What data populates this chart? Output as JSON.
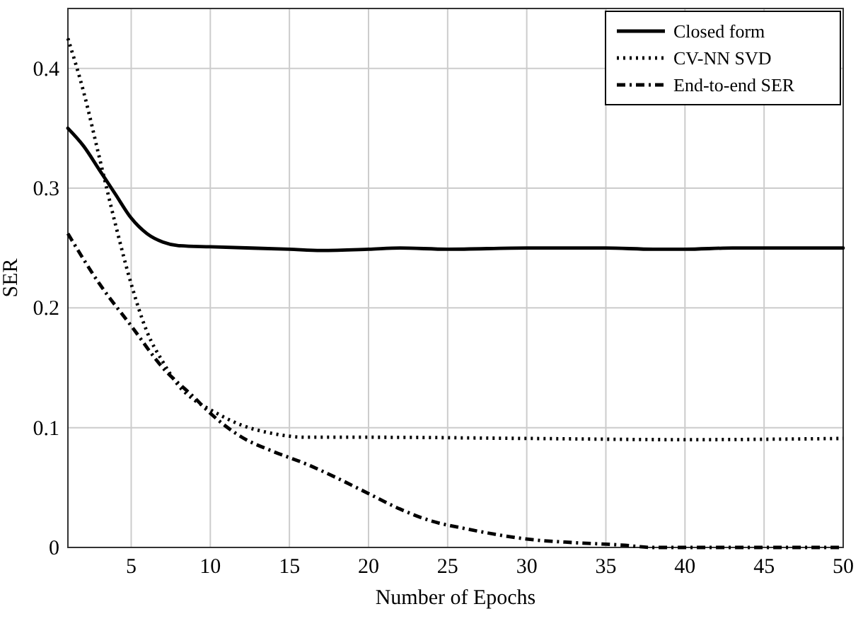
{
  "chart_data": {
    "type": "line",
    "xlabel": "Number of Epochs",
    "ylabel": "SER",
    "xlim": [
      1,
      50
    ],
    "xticks": [
      5,
      10,
      15,
      20,
      25,
      30,
      35,
      40,
      45,
      50
    ],
    "ylim": [
      0,
      0.45
    ],
    "yticks": [
      0,
      0.1,
      0.2,
      0.3,
      0.4
    ],
    "grid": true,
    "legend": "top right",
    "series": [
      {
        "name": "Closed form",
        "color": "#000000",
        "line_style": "solid",
        "x": [
          1,
          2,
          3,
          4,
          5,
          6,
          7,
          8,
          10,
          15,
          17,
          20,
          22,
          25,
          30,
          35,
          38,
          40,
          43,
          50
        ],
        "values": [
          0.35,
          0.335,
          0.315,
          0.295,
          0.275,
          0.262,
          0.255,
          0.252,
          0.251,
          0.249,
          0.248,
          0.249,
          0.25,
          0.249,
          0.25,
          0.25,
          0.249,
          0.249,
          0.25,
          0.25
        ]
      },
      {
        "name": "CV-NN SVD",
        "color": "#000000",
        "line_style": "dotted",
        "x": [
          1,
          2,
          3,
          4,
          5,
          6,
          7,
          8,
          9,
          10,
          12,
          14,
          16,
          20,
          30,
          40,
          50
        ],
        "values": [
          0.425,
          0.38,
          0.325,
          0.27,
          0.22,
          0.18,
          0.155,
          0.135,
          0.123,
          0.115,
          0.102,
          0.095,
          0.092,
          0.092,
          0.091,
          0.09,
          0.091
        ]
      },
      {
        "name": "End-to-end SER",
        "color": "#000000",
        "line_style": "dashdot",
        "x": [
          1,
          3,
          5,
          7,
          9,
          10,
          12,
          14,
          16,
          18,
          20,
          22,
          24,
          26,
          28,
          30,
          33,
          36,
          38,
          50
        ],
        "values": [
          0.262,
          0.22,
          0.185,
          0.15,
          0.125,
          0.112,
          0.092,
          0.08,
          0.07,
          0.058,
          0.045,
          0.032,
          0.022,
          0.016,
          0.011,
          0.007,
          0.004,
          0.002,
          0,
          0
        ]
      }
    ]
  }
}
